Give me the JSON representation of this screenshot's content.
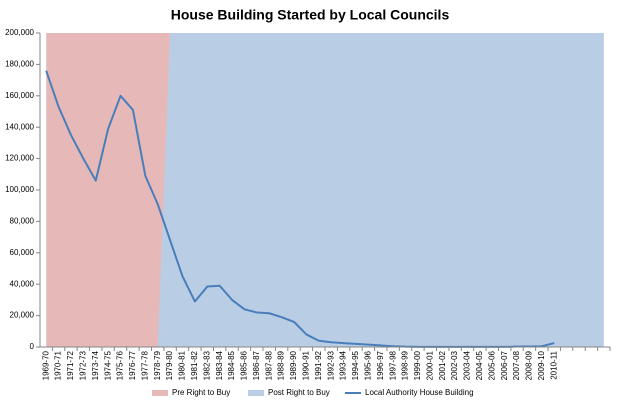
{
  "chart_data": {
    "type": "area-line",
    "title": "House Building Started by Local Councils",
    "categories": [
      "1969-70",
      "1970-71",
      "1971-72",
      "1972-73",
      "1973-74",
      "1974-75",
      "1975-76",
      "1976-77",
      "1977-78",
      "1978-79",
      "1979-80",
      "1980-81",
      "1981-82",
      "1982-83",
      "1983-84",
      "1984-85",
      "1985-86",
      "1986-87",
      "1987-88",
      "1988-89",
      "1989-90",
      "1990-91",
      "1991-92",
      "1992-93",
      "1993-94",
      "1994-95",
      "1995-96",
      "1996-97",
      "1997-98",
      "1998-99",
      "1999-00",
      "2000-01",
      "2001-02",
      "2002-03",
      "2003-04",
      "2004-05",
      "2005-06",
      "2006-07",
      "2007-08",
      "2008-09",
      "2009-10",
      "2010-11",
      null,
      null,
      null,
      null
    ],
    "series": [
      {
        "name": "Pre Right to Buy",
        "type": "area",
        "color": "#e6b9b8",
        "values": [
          200000,
          200000,
          200000,
          200000,
          200000,
          200000,
          200000,
          200000,
          200000,
          200000,
          200000,
          0,
          0,
          0,
          0,
          0,
          0,
          0,
          0,
          0,
          0,
          0,
          0,
          0,
          0,
          0,
          0,
          0,
          0,
          0,
          0,
          0,
          0,
          0,
          0,
          0,
          0,
          0,
          0,
          0,
          0,
          0,
          0,
          0,
          0,
          0
        ]
      },
      {
        "name": "Post Right to Buy",
        "type": "area",
        "color": "#b9cde5",
        "values": [
          0,
          0,
          0,
          0,
          0,
          0,
          0,
          0,
          0,
          0,
          200000,
          200000,
          200000,
          200000,
          200000,
          200000,
          200000,
          200000,
          200000,
          200000,
          200000,
          200000,
          200000,
          200000,
          200000,
          200000,
          200000,
          200000,
          200000,
          200000,
          200000,
          200000,
          200000,
          200000,
          200000,
          200000,
          200000,
          200000,
          200000,
          200000,
          200000,
          200000,
          200000,
          200000,
          200000,
          200000
        ]
      },
      {
        "name": "Local Authority House Building",
        "type": "line",
        "color": "#4a7ebb",
        "values": [
          176000,
          153000,
          135000,
          120000,
          106000,
          139000,
          160000,
          151000,
          109000,
          91000,
          68000,
          45000,
          29000,
          38500,
          39000,
          30000,
          24000,
          22000,
          21500,
          19000,
          16000,
          8000,
          4000,
          3000,
          2500,
          2000,
          1500,
          1000,
          500,
          200,
          100,
          100,
          50,
          50,
          100,
          50,
          50,
          50,
          300,
          300,
          500,
          2500,
          null,
          null,
          null,
          null
        ]
      }
    ],
    "ylim": [
      0,
      200000
    ],
    "yticks": [
      0,
      {
        "value": 20000,
        "label": "20,000"
      },
      {
        "value": 40000,
        "label": "40,000"
      },
      {
        "value": 60000,
        "label": "60,000"
      },
      {
        "value": 80000,
        "label": "80,000"
      },
      {
        "value": 100000,
        "label": "100,000"
      },
      {
        "value": 120000,
        "label": "120,000"
      },
      {
        "value": 140000,
        "label": "140,000"
      },
      {
        "value": 160000,
        "label": "160,000"
      },
      {
        "value": 180000,
        "label": "180,000"
      },
      {
        "value": 200000,
        "label": "200,000"
      }
    ],
    "grid": false,
    "legend": "bottom"
  }
}
